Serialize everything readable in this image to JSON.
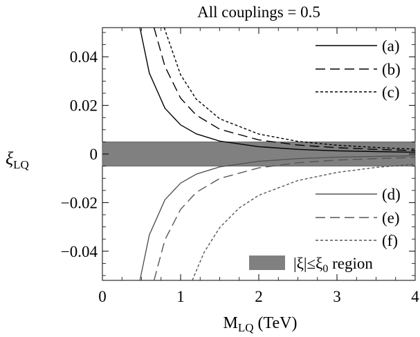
{
  "chart_data": {
    "type": "line",
    "title": "All couplings = 0.5",
    "xlabel": {
      "main": "M",
      "sub": "LQ",
      "unit": " (TeV)"
    },
    "ylabel": {
      "main": "ξ",
      "sub": "LQ"
    },
    "xlim": [
      0,
      4
    ],
    "ylim": [
      -0.052,
      0.052
    ],
    "xticks": [
      {
        "value": 0,
        "label": "0"
      },
      {
        "value": 1,
        "label": "1"
      },
      {
        "value": 2,
        "label": "2"
      },
      {
        "value": 3,
        "label": "3"
      },
      {
        "value": 4,
        "label": "4"
      }
    ],
    "yticks": [
      {
        "value": 0.04,
        "label": "0.04"
      },
      {
        "value": 0.02,
        "label": "0.02"
      },
      {
        "value": 0,
        "label": "0"
      },
      {
        "value": -0.02,
        "label": "−0.02"
      },
      {
        "value": -0.04,
        "label": "−0.04"
      }
    ],
    "band": {
      "ymin": -0.005,
      "ymax": 0.005,
      "color": "#808080",
      "legend": {
        "main": "|ξ|≤ξ",
        "sub": "0",
        "tail": " region"
      }
    },
    "grid": false,
    "series": [
      {
        "name": "(a)",
        "style": "solid",
        "color": "#000000",
        "x": [
          0.48,
          0.6,
          0.8,
          1.0,
          1.2,
          1.5,
          2.0,
          2.5,
          3.0,
          3.5,
          4.0
        ],
        "y": [
          0.052,
          0.0333,
          0.0188,
          0.012,
          0.0083,
          0.0053,
          0.003,
          0.0019,
          0.0013,
          0.001,
          0.00075
        ]
      },
      {
        "name": "(b)",
        "style": "dashed",
        "color": "#000000",
        "x": [
          0.66,
          0.8,
          1.0,
          1.2,
          1.5,
          2.0,
          2.5,
          3.0,
          3.5,
          4.0
        ],
        "y": [
          0.052,
          0.036,
          0.023,
          0.016,
          0.0102,
          0.0058,
          0.0037,
          0.0026,
          0.0019,
          0.0014
        ]
      },
      {
        "name": "(c)",
        "style": "dotted",
        "color": "#000000",
        "x": [
          0.79,
          1.0,
          1.2,
          1.5,
          2.0,
          2.5,
          3.0,
          3.5,
          4.0
        ],
        "y": [
          0.052,
          0.0326,
          0.0226,
          0.0145,
          0.0082,
          0.0052,
          0.0036,
          0.0027,
          0.002
        ]
      },
      {
        "name": "(d)",
        "style": "solid",
        "color": "#555555",
        "x": [
          0.48,
          0.6,
          0.8,
          1.0,
          1.2,
          1.5,
          2.0,
          2.5,
          3.0,
          3.5,
          4.0
        ],
        "y": [
          -0.052,
          -0.0333,
          -0.0188,
          -0.012,
          -0.0083,
          -0.0053,
          -0.003,
          -0.0019,
          -0.0013,
          -0.001,
          -0.00075
        ]
      },
      {
        "name": "(e)",
        "style": "dashed",
        "color": "#555555",
        "x": [
          0.66,
          0.8,
          1.0,
          1.2,
          1.5,
          2.0,
          2.5,
          3.0,
          3.5,
          4.0
        ],
        "y": [
          -0.052,
          -0.0353,
          -0.0228,
          -0.0158,
          -0.0101,
          -0.0057,
          -0.0036,
          -0.0025,
          -0.0019,
          -0.0014
        ]
      },
      {
        "name": "(f)",
        "style": "dotted",
        "color": "#555555",
        "x": [
          1.15,
          1.3,
          1.5,
          1.75,
          2.0,
          2.5,
          3.0,
          3.5,
          4.0
        ],
        "y": [
          -0.052,
          -0.0405,
          -0.0303,
          -0.0222,
          -0.017,
          -0.0109,
          -0.0076,
          -0.0055,
          -0.0042
        ]
      }
    ]
  }
}
